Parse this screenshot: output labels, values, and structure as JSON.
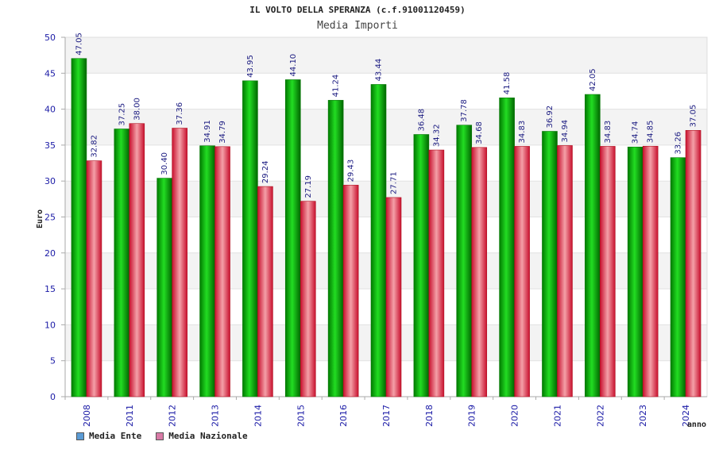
{
  "header": {
    "title": "IL VOLTO DELLA SPERANZA (c.f.91001120459)",
    "subtitle": "Media Importi"
  },
  "legend": {
    "items": [
      {
        "label": "Media Ente",
        "color": "#5b9bd5"
      },
      {
        "label": "Media Nazionale",
        "color": "#d87aa6"
      }
    ]
  },
  "colors": {
    "ente": "#00b000",
    "nazionale": "#e8505a",
    "grid_band": "#f3f3f3",
    "axis": "#aaaaaa"
  },
  "chart_data": {
    "type": "bar",
    "title": "IL VOLTO DELLA SPERANZA (c.f.91001120459)",
    "subtitle": "Media Importi",
    "xlabel": "anno",
    "ylabel": "Euro",
    "ylim": [
      0,
      50
    ],
    "yticks": [
      0,
      5,
      10,
      15,
      20,
      25,
      30,
      35,
      40,
      45,
      50
    ],
    "categories": [
      "2008",
      "2011",
      "2012",
      "2013",
      "2014",
      "2015",
      "2016",
      "2017",
      "2018",
      "2019",
      "2020",
      "2021",
      "2022",
      "2023",
      "2024"
    ],
    "series": [
      {
        "name": "Media Ente",
        "values": [
          47.05,
          37.25,
          30.4,
          34.91,
          43.95,
          44.1,
          41.24,
          43.44,
          36.48,
          37.78,
          41.58,
          36.92,
          42.05,
          34.74,
          33.26
        ],
        "labels": [
          "47.05",
          "37.25",
          "30.40",
          "34.91",
          "43.95",
          "44.10",
          "41.24",
          "43.44",
          "36.48",
          "37.78",
          "41.58",
          "36.92",
          "42.05",
          "34.74",
          "33.26"
        ]
      },
      {
        "name": "Media Nazionale",
        "values": [
          32.82,
          38.0,
          37.36,
          34.79,
          29.24,
          27.19,
          29.43,
          27.71,
          34.32,
          34.68,
          34.83,
          34.94,
          34.83,
          34.85,
          37.05
        ],
        "labels": [
          "32.82",
          "38.00",
          "37.36",
          "34.79",
          "29.24",
          "27.19",
          "29.43",
          "27.71",
          "34.32",
          "34.68",
          "34.83",
          "34.94",
          "34.83",
          "34.85",
          "37.05"
        ]
      }
    ],
    "grid": true,
    "legend_position": "bottom-left"
  }
}
